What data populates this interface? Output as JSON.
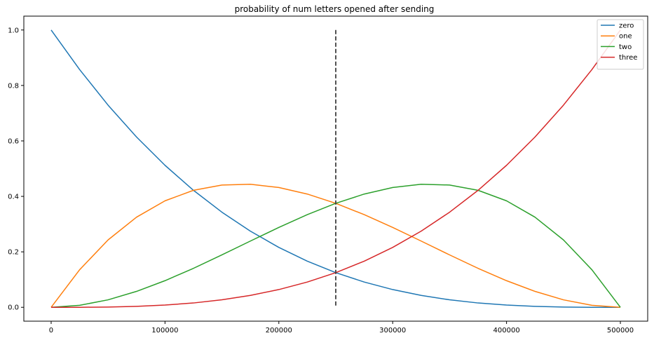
{
  "chart_data": {
    "type": "line",
    "title": "probability of num letters opened after sending",
    "xlabel": "",
    "ylabel": "",
    "xlim": [
      -24000,
      524000
    ],
    "ylim": [
      -0.05,
      1.05
    ],
    "x_ticks": [
      0,
      100000,
      200000,
      300000,
      400000,
      500000
    ],
    "x_tick_labels": [
      "0",
      "100000",
      "200000",
      "300000",
      "400000",
      "500000"
    ],
    "y_ticks": [
      0.0,
      0.2,
      0.4,
      0.6,
      0.8,
      1.0
    ],
    "y_tick_labels": [
      "0.0",
      "0.2",
      "0.4",
      "0.6",
      "0.8",
      "1.0"
    ],
    "grid": false,
    "legend_position": "top-right",
    "x": [
      0,
      25000,
      50000,
      75000,
      100000,
      125000,
      150000,
      175000,
      200000,
      225000,
      250000,
      275000,
      300000,
      325000,
      350000,
      375000,
      400000,
      425000,
      450000,
      475000,
      500000
    ],
    "series": [
      {
        "name": "zero",
        "color": "#1f77b4",
        "values": [
          1.0,
          0.8574,
          0.729,
          0.6141,
          0.512,
          0.4219,
          0.343,
          0.2746,
          0.216,
          0.1664,
          0.125,
          0.0911,
          0.064,
          0.0429,
          0.027,
          0.0156,
          0.008,
          0.0034,
          0.001,
          0.0001,
          0.0
        ]
      },
      {
        "name": "one",
        "color": "#ff7f0e",
        "values": [
          0.0,
          0.1354,
          0.243,
          0.3251,
          0.384,
          0.4219,
          0.441,
          0.4436,
          0.432,
          0.4084,
          0.375,
          0.3341,
          0.288,
          0.2389,
          0.189,
          0.1406,
          0.096,
          0.0574,
          0.027,
          0.0071,
          0.0
        ]
      },
      {
        "name": "two",
        "color": "#2ca02c",
        "values": [
          0.0,
          0.0071,
          0.027,
          0.0574,
          0.096,
          0.1406,
          0.189,
          0.2389,
          0.288,
          0.3341,
          0.375,
          0.4084,
          0.432,
          0.4436,
          0.441,
          0.4219,
          0.384,
          0.3251,
          0.243,
          0.1354,
          0.0
        ]
      },
      {
        "name": "three",
        "color": "#d62728",
        "values": [
          0.0,
          0.0001,
          0.001,
          0.0034,
          0.008,
          0.0156,
          0.027,
          0.0429,
          0.064,
          0.0911,
          0.125,
          0.1664,
          0.216,
          0.2746,
          0.343,
          0.4219,
          0.512,
          0.6141,
          0.729,
          0.8574,
          1.0
        ]
      }
    ],
    "annotations": [
      {
        "type": "vline",
        "x": 250000,
        "y_range": [
          0.0,
          1.0
        ],
        "style": "dashed",
        "color": "#404040"
      }
    ]
  }
}
